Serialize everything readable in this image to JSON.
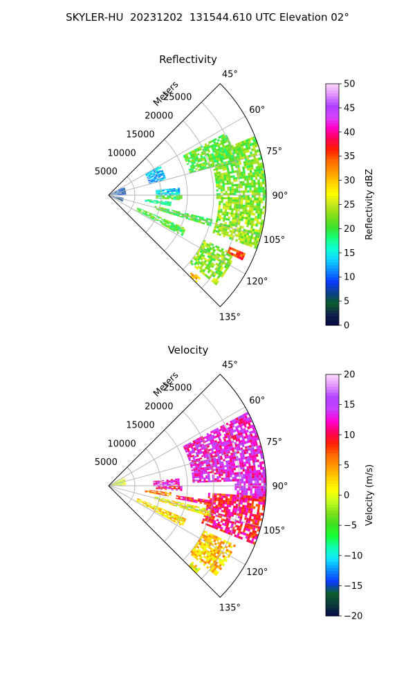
{
  "suptitle": "SKYLER-HU  20231202  131544.610 UTC Elevation 02°",
  "chart_data": [
    {
      "type": "polar-sector",
      "title": "Reflectivity",
      "radial_label": "Meters",
      "radial_ticks": [
        5000,
        10000,
        15000,
        20000,
        25000
      ],
      "r_max_m": 30000,
      "angular_ticks_deg": [
        45,
        60,
        75,
        90,
        105,
        120,
        135
      ],
      "angle_range_deg": [
        45,
        135
      ],
      "grid": true,
      "colorbar": {
        "label": "Reflectivity dBZ",
        "range": [
          0,
          50
        ],
        "ticks": [
          0,
          5,
          10,
          15,
          20,
          25,
          30,
          35,
          40,
          45,
          50
        ],
        "stops": [
          "#08084a",
          "#10204a",
          "#0b5e2e",
          "#0b3f8e",
          "#0a3cff",
          "#0a8cff",
          "#0fd4ff",
          "#0fffd5",
          "#16ff7a",
          "#3fe02a",
          "#7fe01a",
          "#c6e51d",
          "#ffff00",
          "#ffd000",
          "#ff9a00",
          "#ff6a00",
          "#ff2000",
          "#ff0050",
          "#ff00c8",
          "#d844ff",
          "#b040ff",
          "#e090ff",
          "#ffd8ff"
        ]
      },
      "echo_regions": [
        {
          "az_from": 68,
          "az_to": 92,
          "r_from": 20500,
          "r_to": 30000,
          "value": 22
        },
        {
          "az_from": 91,
          "az_to": 110,
          "r_from": 21000,
          "r_to": 30000,
          "value": 23
        },
        {
          "az_from": 62,
          "az_to": 75,
          "r_from": 16000,
          "r_to": 25000,
          "value": 21
        },
        {
          "az_from": 84,
          "az_to": 90,
          "r_from": 9000,
          "r_to": 13500,
          "value": 14
        },
        {
          "az_from": 90,
          "az_to": 94,
          "r_from": 9000,
          "r_to": 14000,
          "value": 20
        },
        {
          "az_from": 103,
          "az_to": 107,
          "r_from": 9000,
          "r_to": 20000,
          "value": 21
        },
        {
          "az_from": 113,
          "az_to": 119,
          "r_from": 6000,
          "r_to": 16000,
          "value": 21
        },
        {
          "az_from": 115,
          "az_to": 130,
          "r_from": 20000,
          "r_to": 26500,
          "value": 23
        },
        {
          "az_from": 113,
          "az_to": 116,
          "r_from": 25000,
          "r_to": 28000,
          "value": 36
        },
        {
          "az_from": 132,
          "az_to": 135,
          "r_from": 21500,
          "r_to": 23500,
          "value": 30
        },
        {
          "az_from": 62,
          "az_to": 88,
          "r_from": 0,
          "r_to": 3200,
          "value": 8
        },
        {
          "az_from": 100,
          "az_to": 115,
          "r_from": 0,
          "r_to": 2800,
          "value": 6
        },
        {
          "az_from": 60,
          "az_to": 75,
          "r_from": 8000,
          "r_to": 11000,
          "value": 13
        },
        {
          "az_from": 96,
          "az_to": 100,
          "r_from": 7000,
          "r_to": 12000,
          "value": 17
        }
      ]
    },
    {
      "type": "polar-sector",
      "title": "Velocity",
      "radial_label": "Meters",
      "radial_ticks": [
        5000,
        10000,
        15000,
        20000,
        25000
      ],
      "r_max_m": 30000,
      "angular_ticks_deg": [
        45,
        60,
        75,
        90,
        105,
        120,
        135
      ],
      "angle_range_deg": [
        45,
        135
      ],
      "grid": true,
      "colorbar": {
        "label": "Velocity (m/s)",
        "range": [
          -20,
          20
        ],
        "ticks": [
          -20,
          -15,
          -10,
          -5,
          0,
          5,
          10,
          15,
          20
        ],
        "stops": [
          "#08084a",
          "#0b3a3a",
          "#0b5e2e",
          "#0a3cff",
          "#0a8cff",
          "#0fe8ff",
          "#0fffb0",
          "#16ff30",
          "#3fe020",
          "#7fe01a",
          "#c6ff20",
          "#ffff00",
          "#ffd000",
          "#ff9a00",
          "#ff6a00",
          "#ff2000",
          "#ff0060",
          "#ff00d8",
          "#c840ff",
          "#b040ff",
          "#e090ff",
          "#ffd8ff"
        ]
      },
      "echo_regions": [
        {
          "az_from": 62,
          "az_to": 88,
          "r_from": 16000,
          "r_to": 30000,
          "value": 13
        },
        {
          "az_from": 84,
          "az_to": 96,
          "r_from": 24000,
          "r_to": 30000,
          "value": 14
        },
        {
          "az_from": 94,
          "az_to": 112,
          "r_from": 19000,
          "r_to": 30000,
          "value": 10
        },
        {
          "az_from": 84,
          "az_to": 90,
          "r_from": 8500,
          "r_to": 13500,
          "value": 13
        },
        {
          "az_from": 90,
          "az_to": 94,
          "r_from": 9000,
          "r_to": 14000,
          "value": 11
        },
        {
          "az_from": 98,
          "az_to": 101,
          "r_from": 13000,
          "r_to": 20000,
          "value": 10
        },
        {
          "az_from": 103,
          "az_to": 107,
          "r_from": 9000,
          "r_to": 20000,
          "value": 1
        },
        {
          "az_from": 113,
          "az_to": 119,
          "r_from": 6000,
          "r_to": 16000,
          "value": 2
        },
        {
          "az_from": 115,
          "az_to": 130,
          "r_from": 20000,
          "r_to": 26500,
          "value": 3
        },
        {
          "az_from": 132,
          "az_to": 135,
          "r_from": 21500,
          "r_to": 23500,
          "value": 1
        },
        {
          "az_from": 62,
          "az_to": 88,
          "r_from": 0,
          "r_to": 3200,
          "value": 0
        },
        {
          "az_from": 96,
          "az_to": 100,
          "r_from": 7000,
          "r_to": 12000,
          "value": 6
        }
      ]
    }
  ]
}
